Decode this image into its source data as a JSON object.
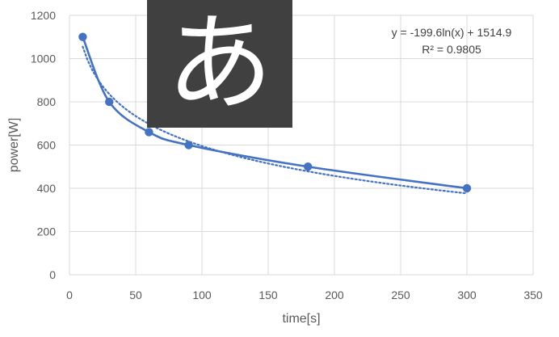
{
  "chart_data": {
    "type": "scatter",
    "xlabel": "time[s]",
    "ylabel": "power[W]",
    "xlim": [
      0,
      350
    ],
    "ylim": [
      0,
      1200
    ],
    "xticks": [
      0,
      50,
      100,
      150,
      200,
      250,
      300,
      350
    ],
    "yticks": [
      0,
      200,
      400,
      600,
      800,
      1000,
      1200
    ],
    "grid": true,
    "series": [
      {
        "x": [
          10,
          30,
          60,
          90,
          180,
          300
        ],
        "y": [
          1100,
          800,
          660,
          600,
          500,
          400
        ],
        "style": "smooth-line-with-markers",
        "color": "#4472C4"
      }
    ],
    "trendline": {
      "type": "logarithmic",
      "a": -199.6,
      "b": 1514.9,
      "x_range": [
        10,
        300
      ],
      "style": "dotted",
      "color": "#4472C4",
      "equation": "y = -199.6ln(x) + 1514.9",
      "r_squared": "R² = 0.9805"
    }
  },
  "overlay": {
    "glyph": "あ",
    "background": "#404040"
  },
  "colors": {
    "gridline": "#d9d9d9",
    "tick_text": "#595959"
  }
}
